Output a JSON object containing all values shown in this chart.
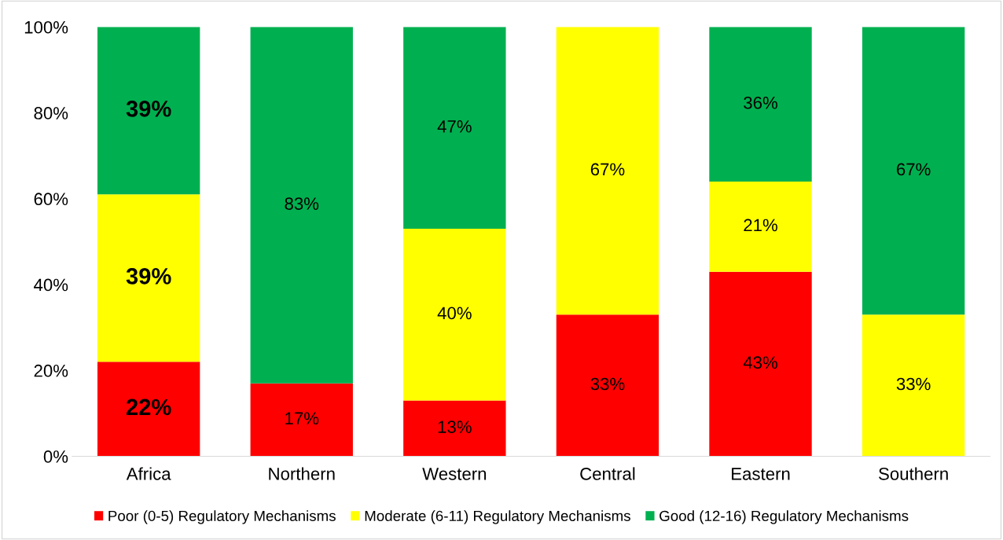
{
  "chart_data": {
    "type": "bar",
    "stacked": true,
    "categories": [
      "Africa",
      "Northern",
      "Western",
      "Central",
      "Eastern",
      "Southern"
    ],
    "series": [
      {
        "name": "Poor (0-5) Regulatory Mechanisms",
        "color": "#ff0000",
        "values": [
          22,
          17,
          13,
          33,
          43,
          0
        ],
        "value_labels": [
          "22%",
          "17%",
          "13%",
          "33%",
          "43%",
          null
        ]
      },
      {
        "name": "Moderate (6-11) Regulatory Mechanisms",
        "color": "#ffff00",
        "values": [
          39,
          0,
          40,
          67,
          21,
          33
        ],
        "value_labels": [
          "39%",
          null,
          "40%",
          "67%",
          "21%",
          "33%"
        ]
      },
      {
        "name": "Good (12-16) Regulatory Mechanisms",
        "color": "#00b050",
        "values": [
          39,
          83,
          47,
          0,
          36,
          67
        ],
        "value_labels": [
          "39%",
          "83%",
          "47%",
          null,
          "36%",
          "67%"
        ]
      }
    ],
    "ylim": [
      0,
      100
    ],
    "yticks": [
      {
        "value": 0,
        "label": "0%"
      },
      {
        "value": 20,
        "label": "20%"
      },
      {
        "value": 40,
        "label": "40%"
      },
      {
        "value": 60,
        "label": "60%"
      },
      {
        "value": 80,
        "label": "80%"
      },
      {
        "value": 100,
        "label": "100%"
      }
    ],
    "grid": false,
    "legend": "bottom"
  }
}
